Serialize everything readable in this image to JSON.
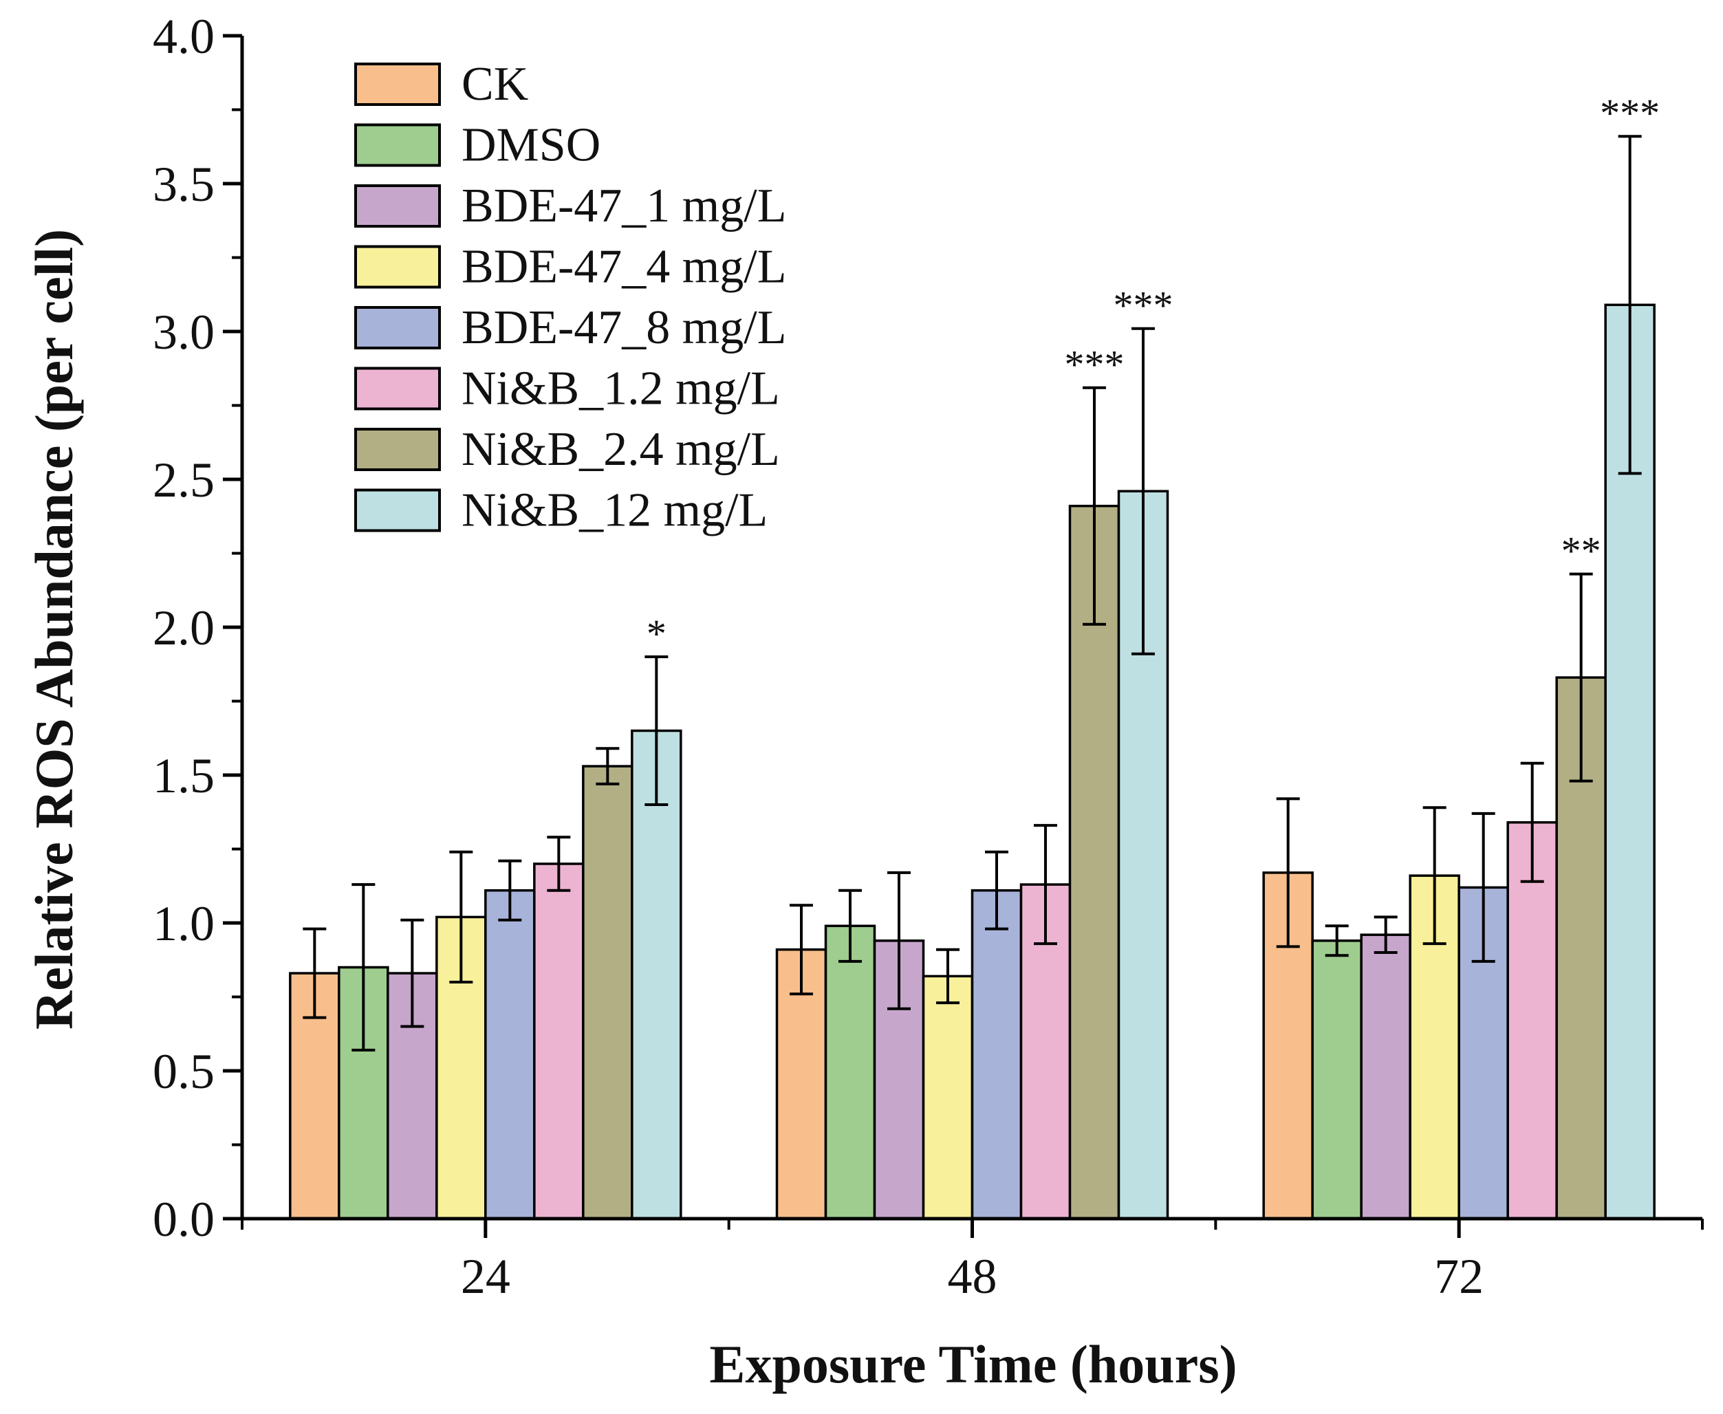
{
  "chart_data": {
    "type": "bar",
    "title": "",
    "xlabel": "Exposure Time (hours)",
    "ylabel": "Relative ROS Abundance (per cell)",
    "ylim": [
      0,
      4.0
    ],
    "yticks": [
      "0.0",
      "0.5",
      "1.0",
      "1.5",
      "2.0",
      "2.5",
      "3.0",
      "3.5",
      "4.0"
    ],
    "categories": [
      "24",
      "48",
      "72"
    ],
    "legend_position": "top-left",
    "series": [
      {
        "name": "CK",
        "color": "#F8BF8C",
        "values": [
          0.83,
          0.91,
          1.17
        ],
        "errors": [
          0.15,
          0.15,
          0.25
        ],
        "sig": [
          "",
          "",
          ""
        ]
      },
      {
        "name": "DMSO",
        "color": "#9ECD8F",
        "values": [
          0.85,
          0.99,
          0.94
        ],
        "errors": [
          0.28,
          0.12,
          0.05
        ],
        "sig": [
          "",
          "",
          ""
        ]
      },
      {
        "name": "BDE-47_1 mg/L",
        "color": "#C7A6CC",
        "values": [
          0.83,
          0.94,
          0.96
        ],
        "errors": [
          0.18,
          0.23,
          0.06
        ],
        "sig": [
          "",
          "",
          ""
        ]
      },
      {
        "name": "BDE-47_4 mg/L",
        "color": "#F8F09A",
        "values": [
          1.02,
          0.82,
          1.16
        ],
        "errors": [
          0.22,
          0.09,
          0.23
        ],
        "sig": [
          "",
          "",
          ""
        ]
      },
      {
        "name": "BDE-47_8 mg/L",
        "color": "#A8B3D9",
        "values": [
          1.11,
          1.11,
          1.12
        ],
        "errors": [
          0.1,
          0.13,
          0.25
        ],
        "sig": [
          "",
          "",
          ""
        ]
      },
      {
        "name": "Ni&B_1.2 mg/L",
        "color": "#EDB4D2",
        "values": [
          1.2,
          1.13,
          1.34
        ],
        "errors": [
          0.09,
          0.2,
          0.2
        ],
        "sig": [
          "",
          "",
          ""
        ]
      },
      {
        "name": "Ni&B_2.4 mg/L",
        "color": "#B3AF85",
        "values": [
          1.53,
          2.41,
          1.83
        ],
        "errors": [
          0.06,
          0.4,
          0.35
        ],
        "sig": [
          "",
          "***",
          "**"
        ]
      },
      {
        "name": "Ni&B_12 mg/L",
        "color": "#BFE0E3",
        "values": [
          1.65,
          2.46,
          3.09
        ],
        "errors": [
          0.25,
          0.55,
          0.57
        ],
        "sig": [
          "*",
          "***",
          "***"
        ]
      }
    ]
  }
}
